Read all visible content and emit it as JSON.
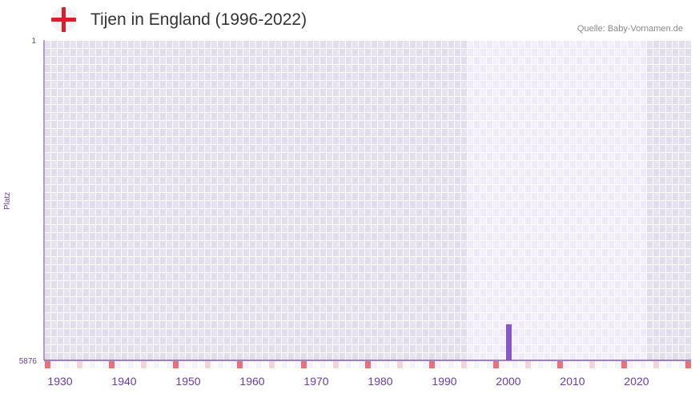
{
  "header": {
    "title": "Tijen in England (1996-2022)",
    "source": "Quelle: Baby-Vornamen.de",
    "flag_icon": "england-flag-icon"
  },
  "chart_data": {
    "type": "bar",
    "title": "Tijen in England (1996-2022)",
    "xlabel": "",
    "ylabel": "Platz",
    "xlim": [
      1928,
      2028
    ],
    "ylim": [
      5876,
      1
    ],
    "y_ticks": [
      "1",
      "5876"
    ],
    "x_ticks": [
      1930,
      1940,
      1950,
      1960,
      1970,
      1980,
      1990,
      2000,
      2010,
      2020
    ],
    "highlight_range": [
      1994,
      2021
    ],
    "series": [
      {
        "name": "Tijen",
        "x": [
          2000
        ],
        "values": [
          5215
        ]
      }
    ],
    "colors": {
      "bar": "#8a55c8",
      "axis": "#6a3aa0",
      "marker": "#e8707a",
      "marker_light": "#f3d3dc"
    }
  }
}
